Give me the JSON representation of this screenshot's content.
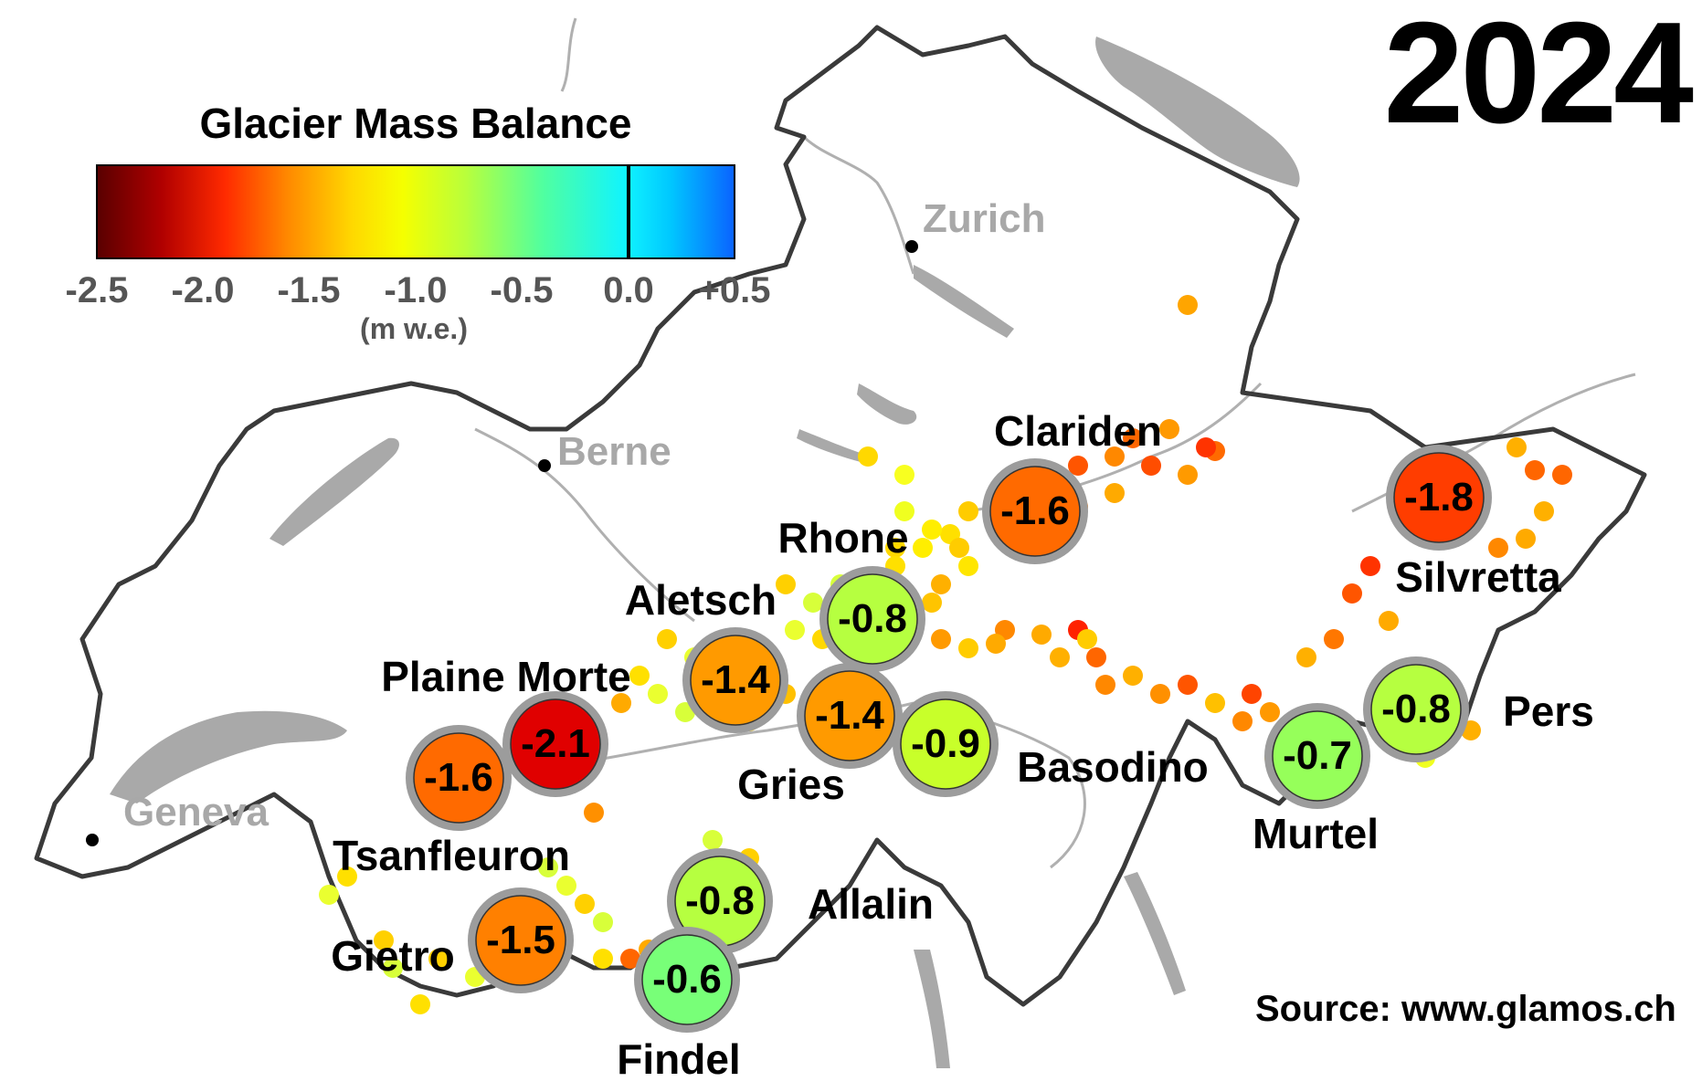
{
  "year": "2024",
  "legend": {
    "title": "Glacier Mass Balance",
    "unit": "(m w.e.)",
    "ticks": [
      "-2.5",
      "-2.0",
      "-1.5",
      "-1.0",
      "-0.5",
      "0.0",
      "+0.5"
    ],
    "range": [
      -2.5,
      0.5
    ]
  },
  "cities": [
    {
      "name": "Zurich"
    },
    {
      "name": "Berne"
    },
    {
      "name": "Geneva"
    }
  ],
  "glaciers": [
    {
      "name": "Clariden",
      "value": "-1.6",
      "color": "#ff6a00"
    },
    {
      "name": "Silvretta",
      "value": "-1.8",
      "color": "#ff3d00"
    },
    {
      "name": "Rhone",
      "value": "-0.8",
      "color": "#b6ff40"
    },
    {
      "name": "Aletsch",
      "value": "-1.4",
      "color": "#ff9a00"
    },
    {
      "name": "Plaine Morte",
      "value": "-2.1",
      "color": "#e00000"
    },
    {
      "name": "Tsanfleuron",
      "value": "-1.6",
      "color": "#ff6a00"
    },
    {
      "name": "Gries",
      "value": "-1.4",
      "color": "#ff9a00"
    },
    {
      "name": "Basodino",
      "value": "-0.9",
      "color": "#c8ff2a"
    },
    {
      "name": "Murtel",
      "value": "-0.7",
      "color": "#96ff5a"
    },
    {
      "name": "Pers",
      "value": "-0.8",
      "color": "#b6ff40"
    },
    {
      "name": "Gietro",
      "value": "-1.5",
      "color": "#ff8000"
    },
    {
      "name": "Allalin",
      "value": "-0.8",
      "color": "#b6ff40"
    },
    {
      "name": "Findel",
      "value": "-0.6",
      "color": "#78ff78"
    }
  ],
  "source": "Source: www.glamos.ch",
  "colors": {
    "lakes": "#a9a9a9",
    "border": "#3a3a3a",
    "canton_lines": "#b0b0b0"
  }
}
